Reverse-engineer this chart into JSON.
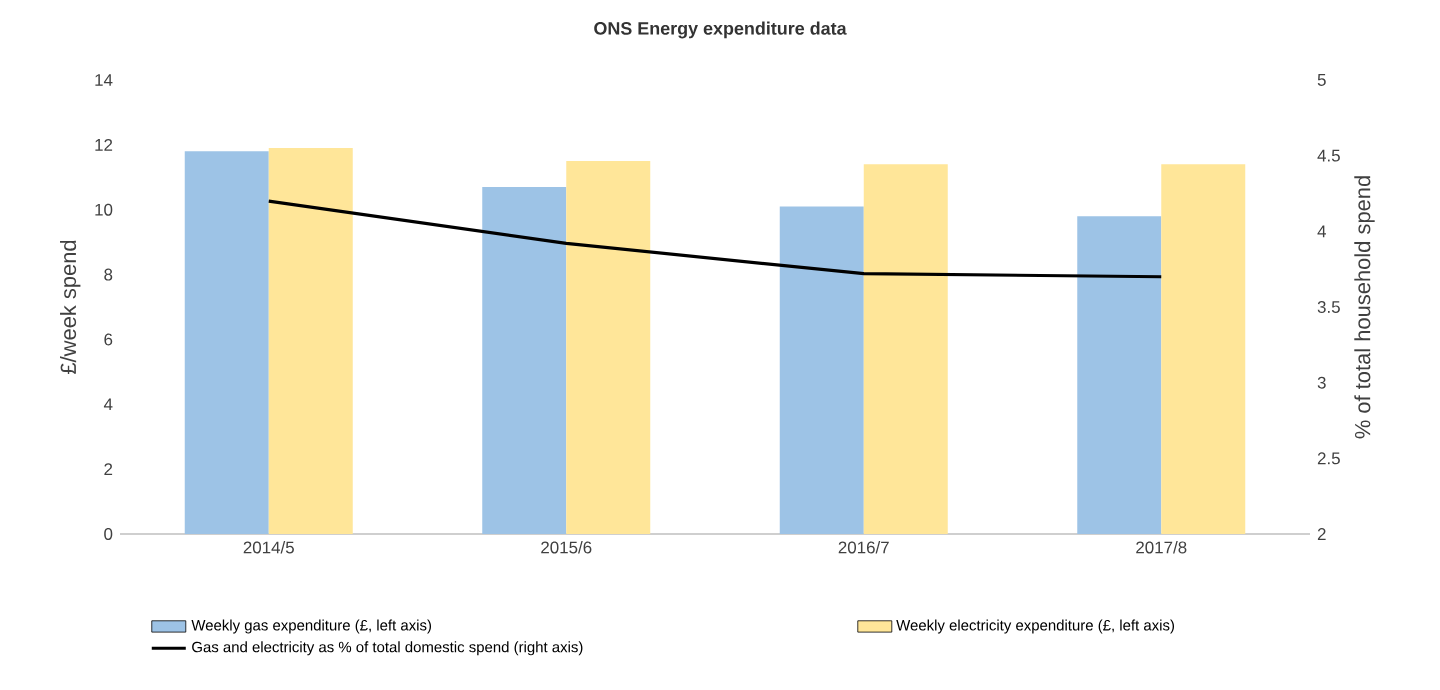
{
  "chart_data": {
    "type": "bar",
    "title": "ONS Energy expenditure data",
    "ylabel": "£/week spend",
    "y2label": "% of total household spend",
    "categories": [
      "2014/5",
      "2015/6",
      "2016/7",
      "2017/8"
    ],
    "series": [
      {
        "name": "Weekly gas expenditure (£, left axis)",
        "color": "#9dc3e6",
        "values": [
          11.8,
          10.7,
          10.1,
          9.8
        ]
      },
      {
        "name": "Weekly electricity expenditure (£, left axis)",
        "color": "#ffe699",
        "values": [
          11.9,
          11.5,
          11.4,
          11.4
        ]
      },
      {
        "name": "Gas and electricity as % of total domestic spend (right axis)",
        "type": "line",
        "axis": "y2",
        "color": "#000000",
        "values": [
          4.2,
          3.92,
          3.72,
          3.7
        ]
      }
    ],
    "ylim": [
      0,
      14
    ],
    "yticks": [
      0,
      2,
      4,
      6,
      8,
      10,
      12,
      14
    ],
    "y2lim": [
      2,
      5
    ],
    "y2ticks": [
      2,
      2.5,
      3,
      3.5,
      4,
      4.5,
      5
    ],
    "grid": false,
    "legend": "bottom",
    "marker": "none",
    "line_style": "solid"
  }
}
